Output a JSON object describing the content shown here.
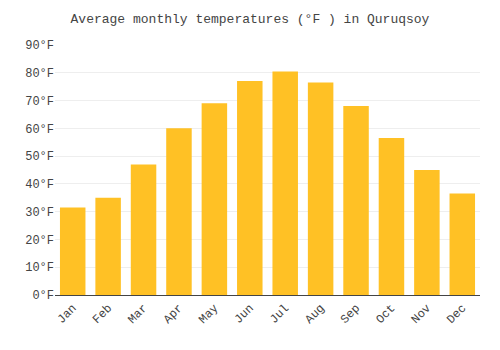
{
  "chart_data": {
    "type": "bar",
    "title": "Average monthly temperatures (°F ) in Quruqsoy",
    "categories": [
      "Jan",
      "Feb",
      "Mar",
      "Apr",
      "May",
      "Jun",
      "Jul",
      "Aug",
      "Sep",
      "Oct",
      "Nov",
      "Dec"
    ],
    "values": [
      31.5,
      35,
      47,
      60,
      69,
      77,
      80.5,
      76.5,
      68,
      56.5,
      45,
      36.5
    ],
    "color": "#FFC125",
    "ylim": [
      0,
      90
    ],
    "yticks": [
      {
        "value": 0,
        "label": "0°F"
      },
      {
        "value": 10,
        "label": "10°F"
      },
      {
        "value": 20,
        "label": "20°F"
      },
      {
        "value": 30,
        "label": "30°F"
      },
      {
        "value": 40,
        "label": "40°F"
      },
      {
        "value": 50,
        "label": "50°F"
      },
      {
        "value": 60,
        "label": "60°F"
      },
      {
        "value": 70,
        "label": "70°F"
      },
      {
        "value": 80,
        "label": "80°F"
      },
      {
        "value": 90,
        "label": "90°F"
      }
    ],
    "grid": true
  }
}
